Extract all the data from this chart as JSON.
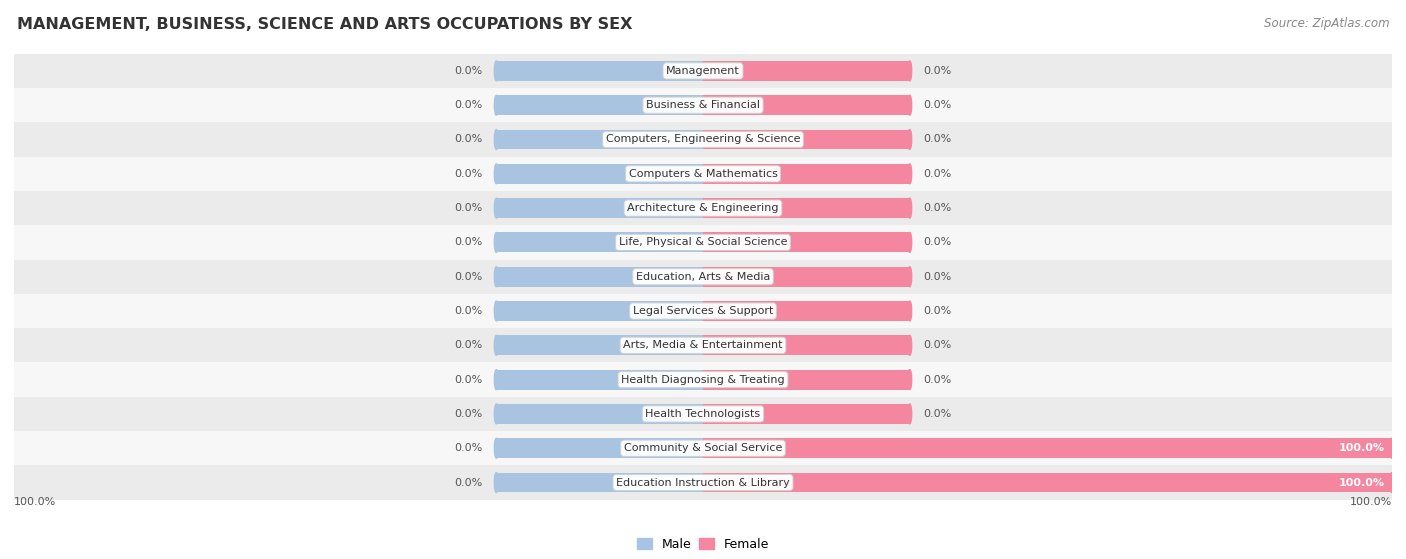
{
  "title": "MANAGEMENT, BUSINESS, SCIENCE AND ARTS OCCUPATIONS BY SEX",
  "source": "Source: ZipAtlas.com",
  "categories": [
    "Management",
    "Business & Financial",
    "Computers, Engineering & Science",
    "Computers & Mathematics",
    "Architecture & Engineering",
    "Life, Physical & Social Science",
    "Education, Arts & Media",
    "Legal Services & Support",
    "Arts, Media & Entertainment",
    "Health Diagnosing & Treating",
    "Health Technologists",
    "Community & Social Service",
    "Education Instruction & Library"
  ],
  "male_values": [
    0.0,
    0.0,
    0.0,
    0.0,
    0.0,
    0.0,
    0.0,
    0.0,
    0.0,
    0.0,
    0.0,
    0.0,
    0.0
  ],
  "female_values": [
    0.0,
    0.0,
    0.0,
    0.0,
    0.0,
    0.0,
    0.0,
    0.0,
    0.0,
    0.0,
    0.0,
    100.0,
    100.0
  ],
  "male_color": "#a8c4e0",
  "female_color": "#f4879f",
  "male_label": "Male",
  "female_label": "Female",
  "axis_min": -100,
  "axis_max": 100,
  "background_color": "#ffffff",
  "row_light_color": "#ebebeb",
  "row_dark_color": "#f7f7f7",
  "title_fontsize": 11.5,
  "source_fontsize": 8.5,
  "cat_label_fontsize": 8,
  "value_label_fontsize": 8,
  "legend_fontsize": 9,
  "min_bar_display": 30
}
